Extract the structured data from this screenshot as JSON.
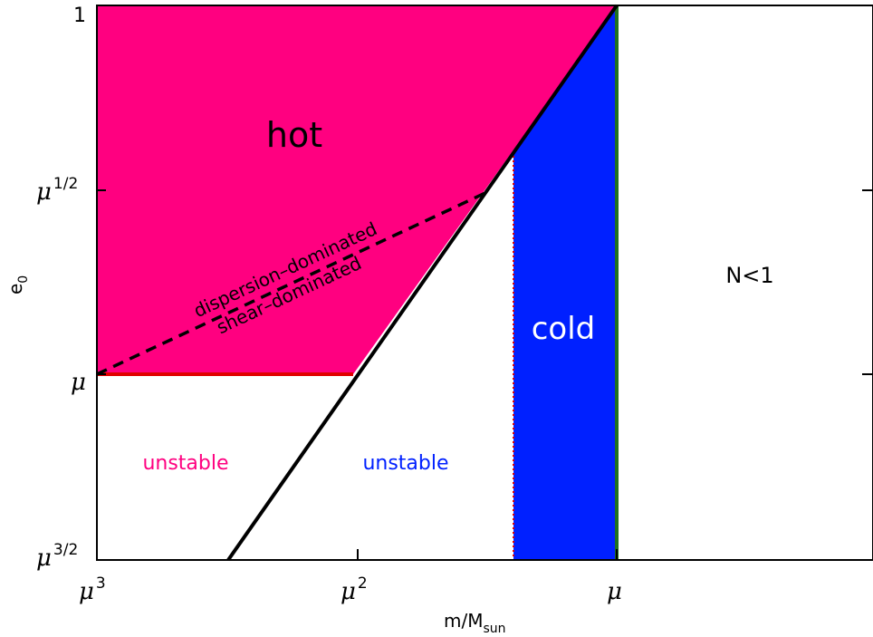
{
  "diagram": {
    "y_label_main": "e",
    "y_label_sub": "0",
    "x_label_main": "m/M",
    "x_label_sub": "sun",
    "y_ticks": [
      {
        "base": "1",
        "sup": ""
      },
      {
        "base": "μ",
        "sup": "1/2"
      },
      {
        "base": "μ",
        "sup": ""
      },
      {
        "base": "μ",
        "sup": "3/2"
      }
    ],
    "x_ticks": [
      {
        "base": "μ",
        "sup": "3"
      },
      {
        "base": "μ",
        "sup": "2"
      },
      {
        "base": "μ",
        "sup": ""
      }
    ],
    "regions": {
      "hot": "hot",
      "cold": "cold",
      "n_lt_1": "N<1",
      "unstable_left": "unstable",
      "unstable_right": "unstable"
    },
    "boundary_labels": {
      "upper": "dispersion–dominated",
      "lower": "shear–dominated"
    },
    "colors": {
      "hot": "#ff0080",
      "cold": "#0020ff",
      "unstable_left_text": "#ff0080",
      "unstable_right_text": "#0020ff",
      "red_line": "#e00000",
      "green_line": "#207020"
    }
  }
}
